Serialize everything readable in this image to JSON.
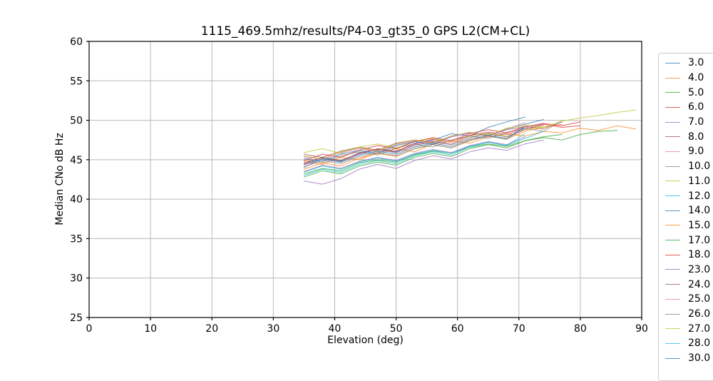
{
  "chart_data": {
    "type": "line",
    "title": "1115_469.5mhz/results/P4-03_gt35_0 GPS L2(CM+CL)",
    "xlabel": "Elevation (deg)",
    "ylabel": "Median CNo dB Hz",
    "xlim": [
      0,
      90
    ],
    "ylim": [
      25,
      60
    ],
    "xticks": [
      0,
      10,
      20,
      30,
      40,
      50,
      60,
      70,
      80,
      90
    ],
    "yticks": [
      25,
      30,
      35,
      40,
      45,
      50,
      55,
      60
    ],
    "grid": true,
    "grid_color": "#b8b8b8",
    "spine_color": "#000000",
    "legend_position": "outside-right",
    "legend_border_color": "#cccccc",
    "line_opacity": 0.75,
    "line_width": 1,
    "x_start": 35,
    "x_step": 3,
    "series": [
      {
        "name": "3.0",
        "color": "#1f77b4",
        "values": [
          44.0,
          45.2,
          44.8,
          45.9,
          46.3,
          46.0,
          47.1,
          47.5,
          48.3,
          48.0,
          49.1,
          49.8,
          50.4
        ]
      },
      {
        "name": "4.0",
        "color": "#ff7f0e",
        "values": [
          44.8,
          44.4,
          45.3,
          45.0,
          45.9,
          46.4,
          46.0,
          47.0,
          47.4,
          47.1,
          47.9,
          48.3,
          48.0,
          48.6,
          48.4,
          49.0,
          48.7,
          49.3,
          48.9
        ]
      },
      {
        "name": "5.0",
        "color": "#2ca02c",
        "values": [
          43.2,
          43.9,
          43.6,
          44.6,
          45.0,
          44.7,
          45.6,
          46.1,
          45.8,
          46.6,
          47.0,
          46.7,
          47.4,
          47.8,
          47.5,
          48.2,
          48.6,
          48.7
        ]
      },
      {
        "name": "6.0",
        "color": "#d62728",
        "values": [
          44.5,
          45.3,
          44.9,
          45.8,
          46.4,
          46.1,
          47.0,
          47.6,
          47.2,
          48.1,
          48.5,
          48.2,
          49.0,
          49.5,
          49.1,
          49.3
        ]
      },
      {
        "name": "7.0",
        "color": "#9467bd",
        "values": [
          42.3,
          41.9,
          42.6,
          43.8,
          44.4,
          43.9,
          44.9,
          45.5,
          45.1,
          46.0,
          46.5,
          46.2,
          47.0,
          47.5
        ]
      },
      {
        "name": "8.0",
        "color": "#8c564b",
        "values": [
          45.7,
          45.3,
          46.1,
          46.6,
          46.2,
          47.1,
          47.5,
          47.2,
          48.0,
          48.4,
          48.1,
          48.8,
          49.2,
          48.9,
          49.8
        ]
      },
      {
        "name": "9.0",
        "color": "#e377c2",
        "values": [
          44.3,
          45.1,
          44.7,
          45.7,
          46.3,
          45.9,
          46.9,
          47.4,
          47.0,
          48.0,
          48.5,
          48.2,
          49.0,
          49.6
        ]
      },
      {
        "name": "10.0",
        "color": "#7f7f7f",
        "values": [
          45.0,
          44.6,
          45.5,
          46.0,
          45.6,
          46.5,
          47.0,
          46.6,
          47.5,
          48.0,
          47.7,
          48.5,
          49.0,
          48.6,
          49.9
        ]
      },
      {
        "name": "11.0",
        "color": "#bcbd22",
        "values": [
          45.9,
          46.4,
          45.8,
          46.6,
          47.0,
          46.5,
          47.3,
          47.7,
          47.2,
          48.0,
          48.4,
          48.0,
          48.8,
          49.2
        ]
      },
      {
        "name": "12.0",
        "color": "#17becf",
        "values": [
          43.0,
          43.8,
          43.4,
          44.4,
          44.9,
          44.5,
          45.5,
          46.0,
          45.6,
          46.6,
          47.2,
          46.8,
          48.3
        ]
      },
      {
        "name": "14.0",
        "color": "#1f77b4",
        "values": [
          45.2,
          44.8,
          45.7,
          46.2,
          45.8,
          46.8,
          47.3,
          46.9,
          47.9,
          48.4,
          48.0,
          48.9,
          49.5,
          50.1
        ]
      },
      {
        "name": "15.0",
        "color": "#ff7f0e",
        "values": [
          43.8,
          44.6,
          44.2,
          45.2,
          45.8,
          45.4,
          46.4,
          46.9,
          46.5,
          47.5,
          48.0,
          47.6,
          48.6,
          49.1,
          49.5
        ]
      },
      {
        "name": "17.0",
        "color": "#2ca02c",
        "values": [
          42.8,
          43.6,
          43.2,
          44.2,
          44.7,
          44.3,
          45.3,
          45.8,
          45.4,
          46.4,
          46.9,
          46.5,
          47.4,
          47.9,
          48.2
        ]
      },
      {
        "name": "18.0",
        "color": "#d62728",
        "values": [
          44.9,
          45.7,
          45.3,
          46.2,
          46.8,
          46.4,
          47.3,
          47.8,
          47.4,
          48.3,
          48.8,
          48.4,
          49.2,
          49.6,
          49.3,
          49.8
        ]
      },
      {
        "name": "23.0",
        "color": "#9467bd",
        "values": [
          43.5,
          44.3,
          43.9,
          44.8,
          45.3,
          44.9,
          45.8,
          46.3,
          45.9,
          46.8,
          47.3,
          46.9,
          47.9
        ]
      },
      {
        "name": "24.0",
        "color": "#8c564b",
        "values": [
          44.6,
          45.3,
          44.9,
          45.8,
          46.3,
          45.9,
          46.8,
          47.3,
          46.9,
          47.8,
          48.3,
          47.9,
          48.8,
          49.4
        ]
      },
      {
        "name": "25.0",
        "color": "#e377c2",
        "values": [
          45.4,
          45.0,
          45.9,
          46.4,
          46.0,
          46.9,
          47.4,
          47.0,
          47.9,
          48.4,
          48.0,
          48.9,
          49.7
        ]
      },
      {
        "name": "26.0",
        "color": "#7f7f7f",
        "values": [
          44.1,
          44.9,
          44.5,
          45.4,
          45.9,
          45.5,
          46.4,
          46.9,
          46.5,
          47.4,
          48.0,
          47.6,
          49.0
        ]
      },
      {
        "name": "27.0",
        "color": "#bcbd22",
        "values": [
          45.5,
          45.1,
          46.0,
          46.5,
          46.1,
          47.0,
          47.5,
          47.1,
          48.0,
          48.5,
          48.1,
          49.0,
          49.4,
          49.1,
          49.9,
          50.3,
          50.6,
          51.0,
          51.3
        ]
      },
      {
        "name": "28.0",
        "color": "#17becf",
        "values": [
          43.4,
          44.2,
          43.8,
          44.7,
          45.2,
          44.8,
          45.7,
          46.2,
          45.8,
          46.7,
          47.2,
          46.8,
          47.7,
          48.6
        ]
      },
      {
        "name": "30.0",
        "color": "#1f77b4",
        "values": [
          44.4,
          45.1,
          44.7,
          45.6,
          46.1,
          45.7,
          46.6,
          47.1,
          46.7,
          47.6,
          48.1,
          47.7,
          49.2
        ]
      }
    ]
  }
}
